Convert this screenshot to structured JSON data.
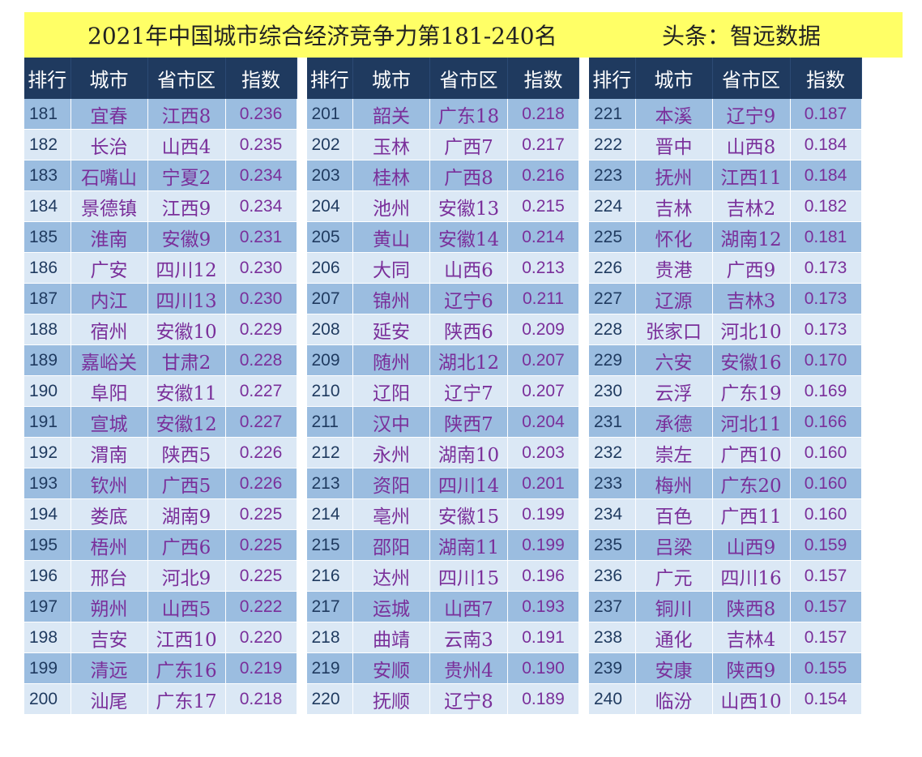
{
  "title": {
    "main": "2021年中国城市综合经济竞争力第181-240名",
    "source": "头条：智远数据"
  },
  "columns": [
    "排行",
    "城市",
    "省市区",
    "指数"
  ],
  "panels": [
    [
      [
        "181",
        "宜春",
        "江西8",
        "0.236"
      ],
      [
        "182",
        "长治",
        "山西4",
        "0.235"
      ],
      [
        "183",
        "石嘴山",
        "宁夏2",
        "0.234"
      ],
      [
        "184",
        "景德镇",
        "江西9",
        "0.234"
      ],
      [
        "185",
        "淮南",
        "安徽9",
        "0.231"
      ],
      [
        "186",
        "广安",
        "四川12",
        "0.230"
      ],
      [
        "187",
        "内江",
        "四川13",
        "0.230"
      ],
      [
        "188",
        "宿州",
        "安徽10",
        "0.229"
      ],
      [
        "189",
        "嘉峪关",
        "甘肃2",
        "0.228"
      ],
      [
        "190",
        "阜阳",
        "安徽11",
        "0.227"
      ],
      [
        "191",
        "宣城",
        "安徽12",
        "0.227"
      ],
      [
        "192",
        "渭南",
        "陕西5",
        "0.226"
      ],
      [
        "193",
        "钦州",
        "广西5",
        "0.226"
      ],
      [
        "194",
        "娄底",
        "湖南9",
        "0.225"
      ],
      [
        "195",
        "梧州",
        "广西6",
        "0.225"
      ],
      [
        "196",
        "邢台",
        "河北9",
        "0.225"
      ],
      [
        "197",
        "朔州",
        "山西5",
        "0.222"
      ],
      [
        "198",
        "吉安",
        "江西10",
        "0.220"
      ],
      [
        "199",
        "清远",
        "广东16",
        "0.219"
      ],
      [
        "200",
        "汕尾",
        "广东17",
        "0.218"
      ]
    ],
    [
      [
        "201",
        "韶关",
        "广东18",
        "0.218"
      ],
      [
        "202",
        "玉林",
        "广西7",
        "0.217"
      ],
      [
        "203",
        "桂林",
        "广西8",
        "0.216"
      ],
      [
        "204",
        "池州",
        "安徽13",
        "0.215"
      ],
      [
        "205",
        "黄山",
        "安徽14",
        "0.214"
      ],
      [
        "206",
        "大同",
        "山西6",
        "0.213"
      ],
      [
        "207",
        "锦州",
        "辽宁6",
        "0.211"
      ],
      [
        "208",
        "延安",
        "陕西6",
        "0.209"
      ],
      [
        "209",
        "随州",
        "湖北12",
        "0.207"
      ],
      [
        "210",
        "辽阳",
        "辽宁7",
        "0.207"
      ],
      [
        "211",
        "汉中",
        "陕西7",
        "0.204"
      ],
      [
        "212",
        "永州",
        "湖南10",
        "0.203"
      ],
      [
        "213",
        "资阳",
        "四川14",
        "0.201"
      ],
      [
        "214",
        "亳州",
        "安徽15",
        "0.199"
      ],
      [
        "215",
        "邵阳",
        "湖南11",
        "0.199"
      ],
      [
        "216",
        "达州",
        "四川15",
        "0.196"
      ],
      [
        "217",
        "运城",
        "山西7",
        "0.193"
      ],
      [
        "218",
        "曲靖",
        "云南3",
        "0.191"
      ],
      [
        "219",
        "安顺",
        "贵州4",
        "0.190"
      ],
      [
        "220",
        "抚顺",
        "辽宁8",
        "0.189"
      ]
    ],
    [
      [
        "221",
        "本溪",
        "辽宁9",
        "0.187"
      ],
      [
        "222",
        "晋中",
        "山西8",
        "0.184"
      ],
      [
        "223",
        "抚州",
        "江西11",
        "0.184"
      ],
      [
        "224",
        "吉林",
        "吉林2",
        "0.182"
      ],
      [
        "225",
        "怀化",
        "湖南12",
        "0.181"
      ],
      [
        "226",
        "贵港",
        "广西9",
        "0.173"
      ],
      [
        "227",
        "辽源",
        "吉林3",
        "0.173"
      ],
      [
        "228",
        "张家口",
        "河北10",
        "0.173"
      ],
      [
        "229",
        "六安",
        "安徽16",
        "0.170"
      ],
      [
        "230",
        "云浮",
        "广东19",
        "0.169"
      ],
      [
        "231",
        "承德",
        "河北11",
        "0.166"
      ],
      [
        "232",
        "崇左",
        "广西10",
        "0.160"
      ],
      [
        "233",
        "梅州",
        "广东20",
        "0.160"
      ],
      [
        "234",
        "百色",
        "广西11",
        "0.160"
      ],
      [
        "235",
        "吕梁",
        "山西9",
        "0.159"
      ],
      [
        "236",
        "广元",
        "四川16",
        "0.157"
      ],
      [
        "237",
        "铜川",
        "陕西8",
        "0.157"
      ],
      [
        "238",
        "通化",
        "吉林4",
        "0.157"
      ],
      [
        "239",
        "安康",
        "陕西9",
        "0.155"
      ],
      [
        "240",
        "临汾",
        "山西10",
        "0.154"
      ]
    ]
  ]
}
